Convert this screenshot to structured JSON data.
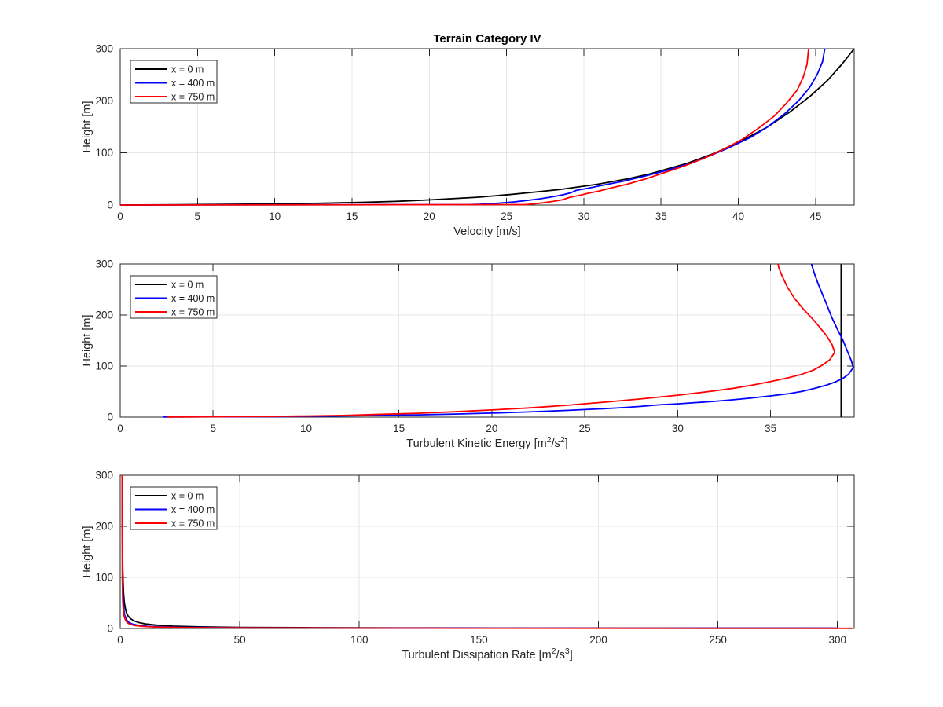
{
  "figure": {
    "title": "Terrain Category IV",
    "background": "#ffffff",
    "axis_color": "#262626",
    "grid_color": "#e6e6e6",
    "label_color": "#262626",
    "legend_border_color": "#2b2b2b",
    "legend_background": "#ffffff"
  },
  "chart_data": [
    {
      "id": "velocity",
      "type": "line",
      "xlabel": [
        {
          "t": "Velocity [m/s]"
        }
      ],
      "ylabel": "Height [m]",
      "xlim": [
        0,
        47.5
      ],
      "ylim": [
        0,
        300
      ],
      "xticks": [
        0,
        5,
        10,
        15,
        20,
        25,
        30,
        35,
        40,
        45
      ],
      "yticks": [
        0,
        100,
        200,
        300
      ],
      "grid": true,
      "legend": "top-left",
      "series": [
        {
          "name": "x = 0 m",
          "color": "#000000",
          "points": [
            [
              0,
              0
            ],
            [
              3.7,
              0.5
            ],
            [
              6.1,
              1
            ],
            [
              9.8,
              2
            ],
            [
              12.2,
              3
            ],
            [
              15.5,
              5
            ],
            [
              17.8,
              7
            ],
            [
              20.1,
              10
            ],
            [
              23.1,
              15
            ],
            [
              25.2,
              20
            ],
            [
              26.9,
              25
            ],
            [
              28.5,
              30
            ],
            [
              30.9,
              40
            ],
            [
              32.8,
              50
            ],
            [
              34.3,
              60
            ],
            [
              36.7,
              80
            ],
            [
              38.5,
              100
            ],
            [
              40.0,
              120
            ],
            [
              41.9,
              150
            ],
            [
              43.4,
              180
            ],
            [
              44.7,
              210
            ],
            [
              45.8,
              240
            ],
            [
              46.7,
              270
            ],
            [
              47.5,
              300
            ]
          ]
        },
        {
          "name": "x = 400 m",
          "color": "#0000ff",
          "points": [
            [
              0,
              0
            ],
            [
              22.6,
              0.7
            ],
            [
              23.3,
              1.5
            ],
            [
              23.9,
              2.5
            ],
            [
              24.7,
              4
            ],
            [
              25.5,
              6
            ],
            [
              26.4,
              9
            ],
            [
              27.2,
              12
            ],
            [
              28.0,
              16
            ],
            [
              28.7,
              20
            ],
            [
              29.2,
              24
            ],
            [
              29.5,
              28
            ],
            [
              30.4,
              33
            ],
            [
              31.4,
              39
            ],
            [
              32.6,
              46
            ],
            [
              34.0,
              56
            ],
            [
              35.3,
              66
            ],
            [
              36.9,
              80
            ],
            [
              38.2,
              95
            ],
            [
              39.4,
              110
            ],
            [
              40.8,
              130
            ],
            [
              41.9,
              150
            ],
            [
              43.0,
              175
            ],
            [
              43.9,
              200
            ],
            [
              44.6,
              225
            ],
            [
              45.1,
              250
            ],
            [
              45.45,
              275
            ],
            [
              45.6,
              300
            ]
          ]
        },
        {
          "name": "x = 750 m",
          "color": "#ff0000",
          "points": [
            [
              0,
              0
            ],
            [
              26.2,
              0.8
            ],
            [
              26.7,
              2
            ],
            [
              27.3,
              4
            ],
            [
              28.0,
              7
            ],
            [
              28.6,
              10
            ],
            [
              28.9,
              13
            ],
            [
              29.1,
              15
            ],
            [
              29.8,
              19
            ],
            [
              30.2,
              22
            ],
            [
              31.0,
              27
            ],
            [
              31.8,
              33
            ],
            [
              32.8,
              40
            ],
            [
              34.0,
              50
            ],
            [
              35.2,
              62
            ],
            [
              36.5,
              75
            ],
            [
              37.8,
              90
            ],
            [
              38.9,
              105
            ],
            [
              40.2,
              125
            ],
            [
              41.2,
              145
            ],
            [
              42.3,
              170
            ],
            [
              43.1,
              195
            ],
            [
              43.8,
              220
            ],
            [
              44.2,
              245
            ],
            [
              44.45,
              270
            ],
            [
              44.55,
              300
            ]
          ]
        }
      ]
    },
    {
      "id": "tke",
      "type": "line",
      "xlabel": [
        {
          "t": "Turbulent Kinetic Energy [m"
        },
        {
          "t": "2",
          "sup": true
        },
        {
          "t": "/s"
        },
        {
          "t": "2",
          "sup": true
        },
        {
          "t": "]"
        }
      ],
      "ylabel": "Height [m]",
      "xlim": [
        0,
        39.5
      ],
      "ylim": [
        0,
        300
      ],
      "xticks": [
        0,
        5,
        10,
        15,
        20,
        25,
        30,
        35
      ],
      "yticks": [
        0,
        100,
        200,
        300
      ],
      "grid": true,
      "legend": "top-left",
      "series": [
        {
          "name": "x = 0 m",
          "color": "#000000",
          "points": [
            [
              38.8,
              0
            ],
            [
              38.8,
              300
            ]
          ]
        },
        {
          "name": "x = 400 m",
          "color": "#0000ff",
          "points": [
            [
              2.3,
              0.2
            ],
            [
              4,
              0.4
            ],
            [
              6,
              0.7
            ],
            [
              8,
              1.1
            ],
            [
              10,
              1.6
            ],
            [
              12,
              2.3
            ],
            [
              14,
              3.2
            ],
            [
              16,
              4.5
            ],
            [
              18,
              6
            ],
            [
              20,
              7.8
            ],
            [
              22,
              10.2
            ],
            [
              24,
              13
            ],
            [
              26,
              16.5
            ],
            [
              27,
              18.5
            ],
            [
              28,
              21
            ],
            [
              29,
              24
            ],
            [
              30,
              26
            ],
            [
              31,
              28.5
            ],
            [
              32,
              31
            ],
            [
              33,
              34
            ],
            [
              34,
              37.5
            ],
            [
              35,
              41.5
            ],
            [
              36,
              46
            ],
            [
              36.7,
              50.5
            ],
            [
              37.4,
              56.5
            ],
            [
              38,
              62.5
            ],
            [
              38.5,
              69
            ],
            [
              38.9,
              76
            ],
            [
              39.2,
              84
            ],
            [
              39.45,
              97
            ],
            [
              39.35,
              110
            ],
            [
              39.15,
              128
            ],
            [
              38.9,
              150
            ],
            [
              38.6,
              172
            ],
            [
              38.3,
              195
            ],
            [
              38.05,
              218
            ],
            [
              37.8,
              240
            ],
            [
              37.55,
              262
            ],
            [
              37.35,
              282
            ],
            [
              37.2,
              300
            ]
          ]
        },
        {
          "name": "x = 750 m",
          "color": "#ff0000",
          "points": [
            [
              2.5,
              0.2
            ],
            [
              4,
              0.5
            ],
            [
              6,
              0.9
            ],
            [
              8,
              1.4
            ],
            [
              10,
              2.2
            ],
            [
              12,
              3.3
            ],
            [
              14,
              5.5
            ],
            [
              16,
              7.5
            ],
            [
              18,
              10.5
            ],
            [
              20,
              14
            ],
            [
              22,
              18
            ],
            [
              24,
              23
            ],
            [
              26,
              29
            ],
            [
              28,
              35.5
            ],
            [
              30,
              43
            ],
            [
              31,
              47
            ],
            [
              32,
              51.5
            ],
            [
              33,
              56.5
            ],
            [
              34,
              62.5
            ],
            [
              35,
              69.5
            ],
            [
              36,
              77.5
            ],
            [
              36.65,
              83.5
            ],
            [
              37.3,
              92
            ],
            [
              37.8,
              102
            ],
            [
              38.2,
              113
            ],
            [
              38.45,
              127
            ],
            [
              38.3,
              143
            ],
            [
              38.0,
              160
            ],
            [
              37.6,
              178
            ],
            [
              37.2,
              195
            ],
            [
              36.8,
              210
            ],
            [
              36.3,
              232
            ],
            [
              35.9,
              255
            ],
            [
              35.6,
              278
            ],
            [
              35.45,
              292
            ],
            [
              35.4,
              300
            ]
          ]
        }
      ]
    },
    {
      "id": "tdr",
      "type": "line",
      "xlabel": [
        {
          "t": "Turbulent Dissipation Rate [m"
        },
        {
          "t": "2",
          "sup": true
        },
        {
          "t": "/s"
        },
        {
          "t": "3",
          "sup": true
        },
        {
          "t": "]"
        }
      ],
      "ylabel": "Height [m]",
      "xlim": [
        0,
        307
      ],
      "ylim": [
        0,
        300
      ],
      "xticks": [
        0,
        50,
        100,
        150,
        200,
        250,
        300
      ],
      "yticks": [
        0,
        100,
        200,
        300
      ],
      "grid": true,
      "legend": "top-left",
      "series": [
        {
          "name": "x = 0 m",
          "color": "#000000",
          "points": [
            [
              0.85,
              300
            ],
            [
              0.88,
              225
            ],
            [
              0.95,
              165
            ],
            [
              1.05,
              120
            ],
            [
              1.2,
              90
            ],
            [
              1.4,
              68
            ],
            [
              1.7,
              52
            ],
            [
              2.1,
              40
            ],
            [
              2.6,
              31
            ],
            [
              3.3,
              24.5
            ],
            [
              4.2,
              19.5
            ],
            [
              5.5,
              15.5
            ],
            [
              7.5,
              12
            ],
            [
              10.5,
              9
            ],
            [
              15,
              6.6
            ],
            [
              22,
              4.6
            ],
            [
              33,
              3.2
            ],
            [
              50,
              2.2
            ],
            [
              80,
              1.5
            ],
            [
              130,
              1.05
            ],
            [
              210,
              0.75
            ],
            [
              300,
              0.55
            ]
          ]
        },
        {
          "name": "x = 400 m",
          "color": "#0000ff",
          "points": [
            [
              0.87,
              300
            ],
            [
              0.9,
              210
            ],
            [
              0.95,
              150
            ],
            [
              1.02,
              105
            ],
            [
              1.12,
              72
            ],
            [
              1.3,
              50
            ],
            [
              1.55,
              35
            ],
            [
              1.95,
              25
            ],
            [
              2.55,
              17.5
            ],
            [
              3.5,
              12.5
            ],
            [
              5,
              8.8
            ],
            [
              7.3,
              6.3
            ],
            [
              11,
              4.5
            ],
            [
              17,
              3.2
            ],
            [
              28,
              2.2
            ],
            [
              50,
              1.5
            ],
            [
              90,
              1.0
            ],
            [
              160,
              0.7
            ],
            [
              250,
              0.5
            ],
            [
              300,
              0.45
            ]
          ]
        },
        {
          "name": "x = 750 m",
          "color": "#ff0000",
          "points": [
            [
              0.8,
              300
            ],
            [
              0.82,
              200
            ],
            [
              0.85,
              140
            ],
            [
              0.9,
              95
            ],
            [
              1.0,
              65
            ],
            [
              1.15,
              45
            ],
            [
              1.4,
              31
            ],
            [
              1.75,
              22
            ],
            [
              2.3,
              15.5
            ],
            [
              3.1,
              11
            ],
            [
              4.4,
              7.8
            ],
            [
              6.3,
              5.6
            ],
            [
              9.5,
              4
            ],
            [
              15,
              2.8
            ],
            [
              25,
              1.9
            ],
            [
              45,
              1.3
            ],
            [
              80,
              0.9
            ],
            [
              140,
              0.6
            ],
            [
              220,
              0.45
            ],
            [
              306,
              0.35
            ]
          ]
        }
      ]
    }
  ]
}
